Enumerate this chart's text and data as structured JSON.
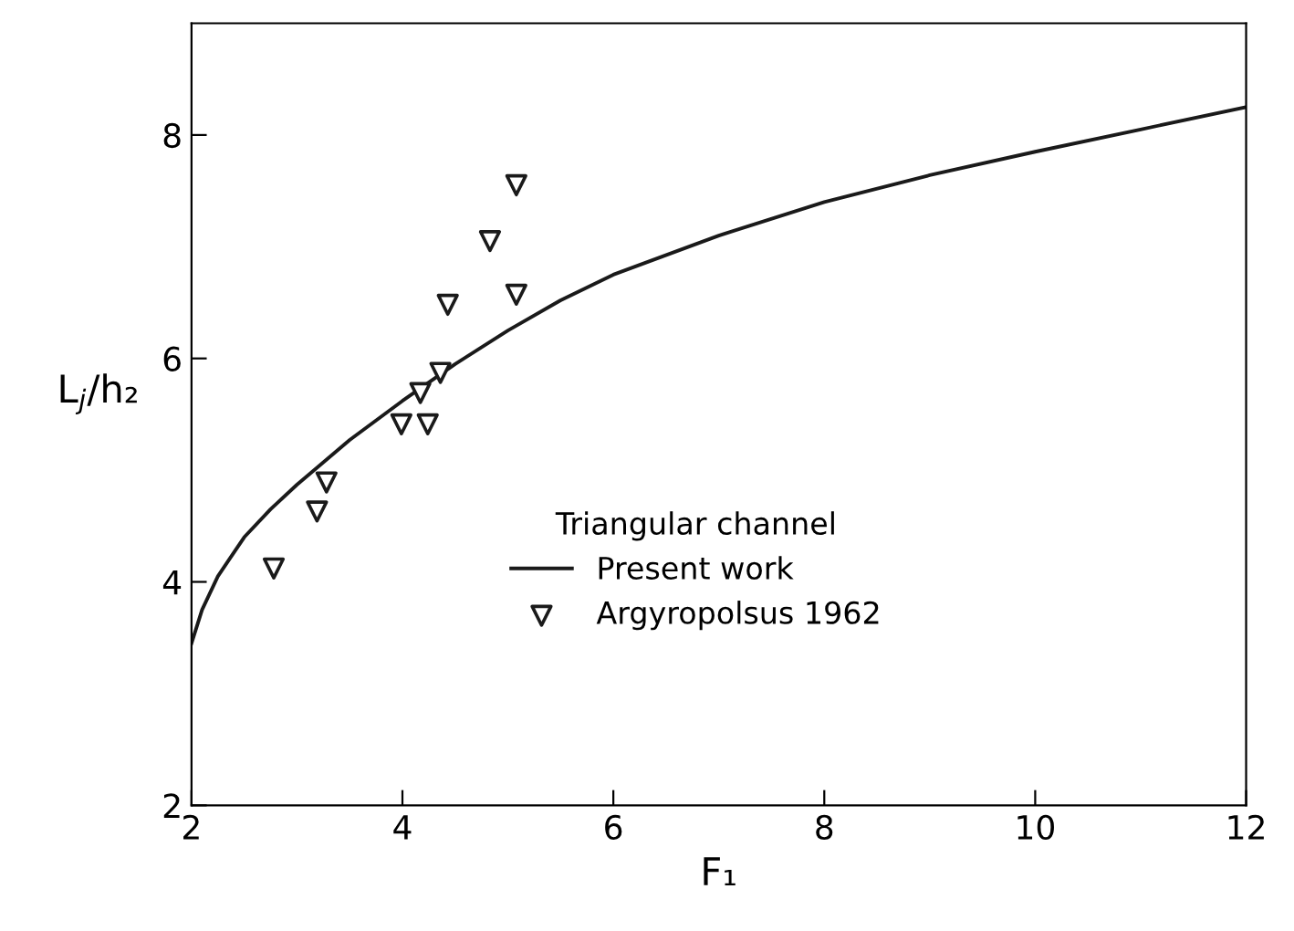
{
  "chart_data": {
    "type": "line",
    "xlabel": "F₁",
    "ylabel": "L$_{j}$/h₂",
    "legend_title": "Triangular channel",
    "xlim": [
      2,
      12
    ],
    "ylim": [
      2,
      9
    ],
    "xticks": [
      2,
      4,
      6,
      8,
      10,
      12
    ],
    "yticks": [
      2,
      4,
      6,
      8
    ],
    "grid": false,
    "legend": "right",
    "series": [
      {
        "name": "Present work",
        "color": "#1a1a1a",
        "marker": "none",
        "line_style": "solid",
        "x": [
          2,
          2.1,
          2.25,
          2.5,
          2.75,
          3,
          3.5,
          4,
          4.5,
          5,
          5.5,
          6,
          7,
          8,
          9,
          10,
          11,
          12
        ],
        "values": [
          3.45,
          3.75,
          4.05,
          4.4,
          4.65,
          4.87,
          5.27,
          5.62,
          5.95,
          6.25,
          6.52,
          6.75,
          7.1,
          7.4,
          7.64,
          7.85,
          8.05,
          8.25
        ]
      },
      {
        "name": "Argyropolsus 1962",
        "type": "scatter",
        "color": "#1a1a1a",
        "marker": "triangle",
        "x": [
          2.78,
          3.19,
          3.28,
          3.99,
          4.24,
          4.17,
          4.36,
          4.43,
          4.83,
          5.08,
          5.08
        ],
        "values": [
          4.12,
          4.63,
          4.89,
          5.41,
          5.41,
          5.69,
          5.87,
          6.48,
          7.05,
          6.57,
          7.55
        ]
      }
    ]
  }
}
